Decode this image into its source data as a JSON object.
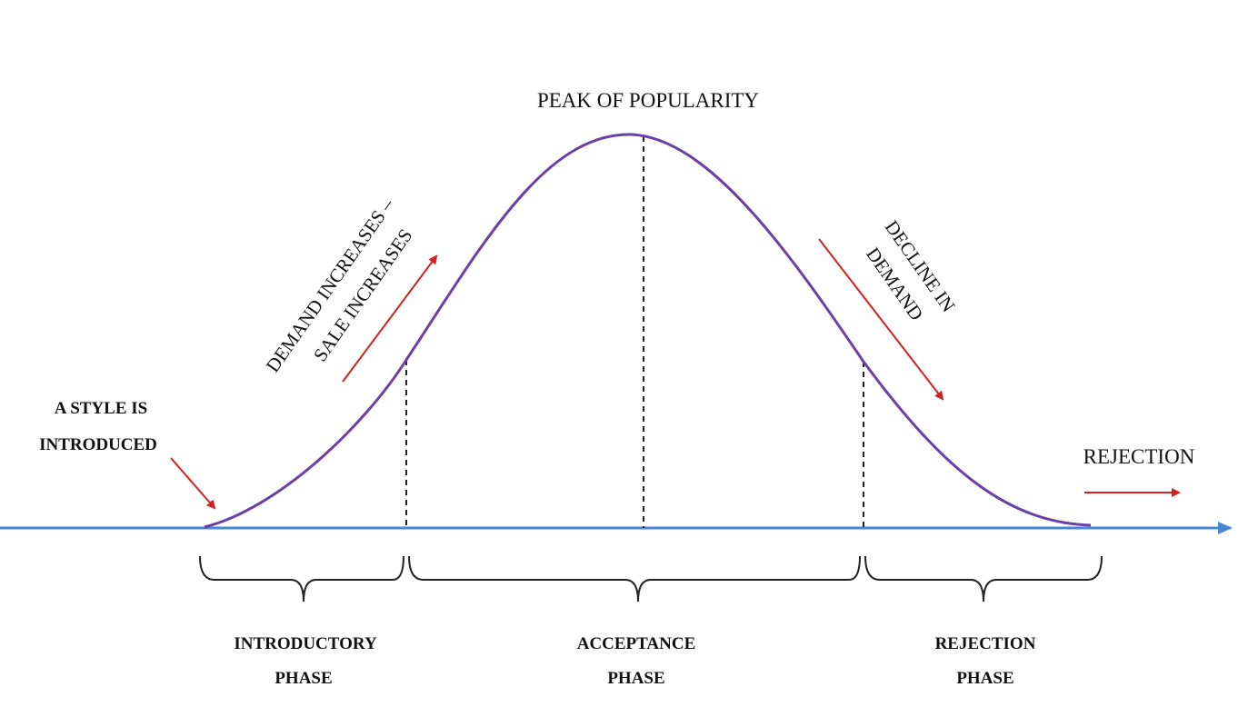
{
  "labels": {
    "peak": "PEAK OF POPULARITY",
    "style_introduced_line1": "A STYLE IS",
    "style_introduced_line2": "INTRODUCED",
    "demand_increases_line1": "DEMAND INCREASES –",
    "demand_increases_line2": "SALE INCREASES",
    "decline_line1": "DECLINE IN",
    "decline_line2": "DEMAND",
    "rejection": "REJECTION"
  },
  "phases": [
    {
      "line1": "INTRODUCTORY",
      "line2": "PHASE"
    },
    {
      "line1": "ACCEPTANCE",
      "line2": "PHASE"
    },
    {
      "line1": "REJECTION",
      "line2": "PHASE"
    }
  ],
  "colors": {
    "curve": "#6a3fa6",
    "axis": "#4a86d4",
    "arrows": "#d42020",
    "dashed": "#222222",
    "brace": "#222222"
  }
}
